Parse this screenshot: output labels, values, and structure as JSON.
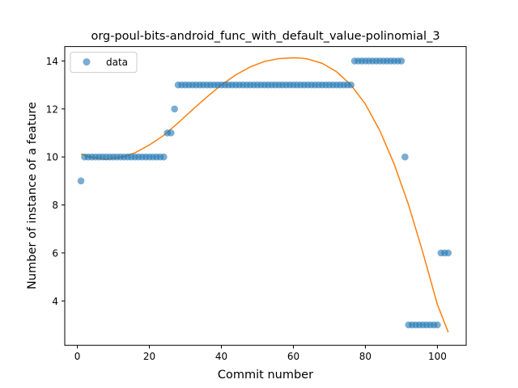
{
  "chart_data": {
    "type": "scatter",
    "title": "org-poul-bits-android_func_with_default_value-polinomial_3",
    "xlabel": "Commit number",
    "ylabel": "Number of instance of a feature",
    "xlim": [
      -3.5,
      108
    ],
    "ylim": [
      2.15,
      14.6
    ],
    "xticks": [
      0,
      20,
      40,
      60,
      80,
      100
    ],
    "yticks": [
      4,
      6,
      8,
      10,
      12,
      14
    ],
    "grid": false,
    "legend": {
      "position": "top-left",
      "entries": [
        "data"
      ]
    },
    "colors": {
      "data": "#1f77b4",
      "fit": "#ff7f0e"
    },
    "series": [
      {
        "name": "data",
        "kind": "scatter",
        "points": [
          [
            1,
            9
          ],
          [
            2,
            10
          ],
          [
            3,
            10
          ],
          [
            4,
            10
          ],
          [
            5,
            10
          ],
          [
            6,
            10
          ],
          [
            7,
            10
          ],
          [
            8,
            10
          ],
          [
            9,
            10
          ],
          [
            10,
            10
          ],
          [
            11,
            10
          ],
          [
            12,
            10
          ],
          [
            13,
            10
          ],
          [
            14,
            10
          ],
          [
            15,
            10
          ],
          [
            16,
            10
          ],
          [
            17,
            10
          ],
          [
            18,
            10
          ],
          [
            19,
            10
          ],
          [
            20,
            10
          ],
          [
            21,
            10
          ],
          [
            22,
            10
          ],
          [
            23,
            10
          ],
          [
            24,
            10
          ],
          [
            25,
            11
          ],
          [
            26,
            11
          ],
          [
            27,
            12
          ],
          [
            28,
            13
          ],
          [
            29,
            13
          ],
          [
            30,
            13
          ],
          [
            31,
            13
          ],
          [
            32,
            13
          ],
          [
            33,
            13
          ],
          [
            34,
            13
          ],
          [
            35,
            13
          ],
          [
            36,
            13
          ],
          [
            37,
            13
          ],
          [
            38,
            13
          ],
          [
            39,
            13
          ],
          [
            40,
            13
          ],
          [
            41,
            13
          ],
          [
            42,
            13
          ],
          [
            43,
            13
          ],
          [
            44,
            13
          ],
          [
            45,
            13
          ],
          [
            46,
            13
          ],
          [
            47,
            13
          ],
          [
            48,
            13
          ],
          [
            49,
            13
          ],
          [
            50,
            13
          ],
          [
            51,
            13
          ],
          [
            52,
            13
          ],
          [
            53,
            13
          ],
          [
            54,
            13
          ],
          [
            55,
            13
          ],
          [
            56,
            13
          ],
          [
            57,
            13
          ],
          [
            58,
            13
          ],
          [
            59,
            13
          ],
          [
            60,
            13
          ],
          [
            61,
            13
          ],
          [
            62,
            13
          ],
          [
            63,
            13
          ],
          [
            64,
            13
          ],
          [
            65,
            13
          ],
          [
            66,
            13
          ],
          [
            67,
            13
          ],
          [
            68,
            13
          ],
          [
            69,
            13
          ],
          [
            70,
            13
          ],
          [
            71,
            13
          ],
          [
            72,
            13
          ],
          [
            73,
            13
          ],
          [
            74,
            13
          ],
          [
            75,
            13
          ],
          [
            76,
            13
          ],
          [
            77,
            14
          ],
          [
            78,
            14
          ],
          [
            79,
            14
          ],
          [
            80,
            14
          ],
          [
            81,
            14
          ],
          [
            82,
            14
          ],
          [
            83,
            14
          ],
          [
            84,
            14
          ],
          [
            85,
            14
          ],
          [
            86,
            14
          ],
          [
            87,
            14
          ],
          [
            88,
            14
          ],
          [
            89,
            14
          ],
          [
            90,
            14
          ],
          [
            91,
            10
          ],
          [
            92,
            3
          ],
          [
            93,
            3
          ],
          [
            94,
            3
          ],
          [
            95,
            3
          ],
          [
            96,
            3
          ],
          [
            97,
            3
          ],
          [
            98,
            3
          ],
          [
            99,
            3
          ],
          [
            100,
            3
          ],
          [
            101,
            6
          ],
          [
            102,
            6
          ],
          [
            103,
            6
          ]
        ]
      },
      {
        "name": "",
        "kind": "line",
        "points": [
          [
            1,
            10.12
          ],
          [
            4,
            9.98
          ],
          [
            8,
            9.9
          ],
          [
            12,
            9.98
          ],
          [
            16,
            10.17
          ],
          [
            20,
            10.5
          ],
          [
            24,
            10.9
          ],
          [
            28,
            11.42
          ],
          [
            32,
            11.97
          ],
          [
            36,
            12.5
          ],
          [
            40,
            13.0
          ],
          [
            44,
            13.42
          ],
          [
            48,
            13.75
          ],
          [
            52,
            13.98
          ],
          [
            56,
            14.1
          ],
          [
            60,
            14.13
          ],
          [
            62,
            14.12
          ],
          [
            64,
            14.08
          ],
          [
            68,
            13.9
          ],
          [
            72,
            13.55
          ],
          [
            76,
            13.0
          ],
          [
            80,
            12.2
          ],
          [
            84,
            11.1
          ],
          [
            88,
            9.7
          ],
          [
            92,
            8.0
          ],
          [
            96,
            6.0
          ],
          [
            100,
            3.85
          ],
          [
            103,
            2.7
          ]
        ]
      }
    ]
  }
}
